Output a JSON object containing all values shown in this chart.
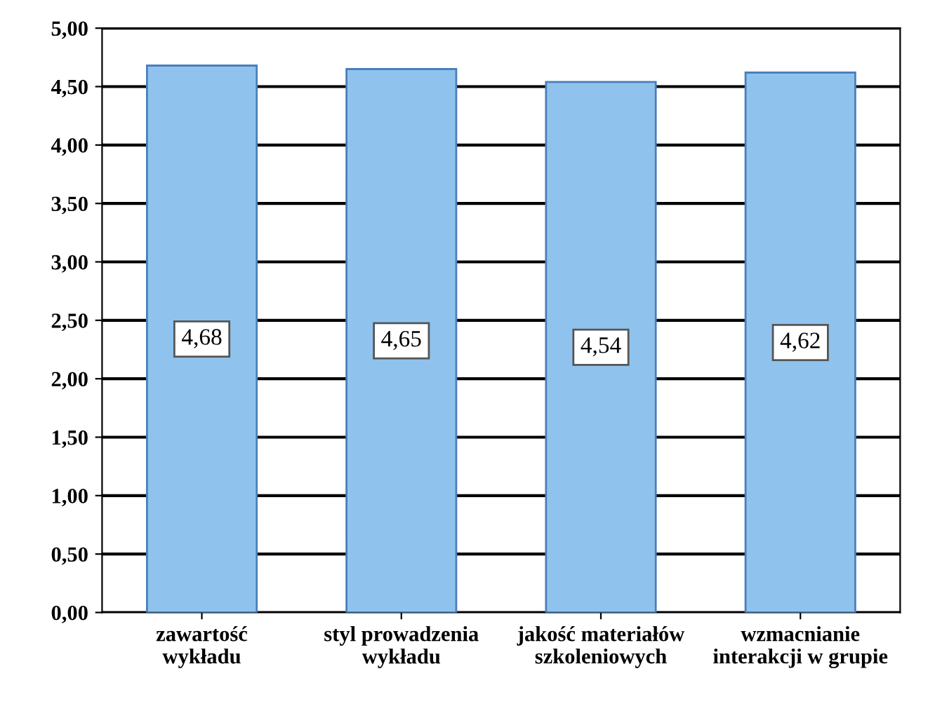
{
  "chart_data": {
    "type": "bar",
    "categories": [
      "zawartość\nwykładu",
      "styl prowadzenia\nwykładu",
      "jakość materiałów\nszkoleniowych",
      "wzmacnianie\ninterakcji w grupie"
    ],
    "values": [
      4.68,
      4.65,
      4.54,
      4.62
    ],
    "value_labels": [
      "4,68",
      "4,65",
      "4,54",
      "4,62"
    ],
    "color": "#8fc3ee",
    "ylim": [
      0,
      5
    ],
    "yticks": [
      {
        "value": 0,
        "label": "0,00"
      },
      {
        "value": 0.5,
        "label": "0,50"
      },
      {
        "value": 1,
        "label": "1,00"
      },
      {
        "value": 1.5,
        "label": "1,50"
      },
      {
        "value": 2,
        "label": "2,00"
      },
      {
        "value": 2.5,
        "label": "2,50"
      },
      {
        "value": 3,
        "label": "3,00"
      },
      {
        "value": 3.5,
        "label": "3,50"
      },
      {
        "value": 4,
        "label": "4,00"
      },
      {
        "value": 4.5,
        "label": "4,50"
      },
      {
        "value": 5,
        "label": "5,00"
      }
    ],
    "grid": "y"
  }
}
